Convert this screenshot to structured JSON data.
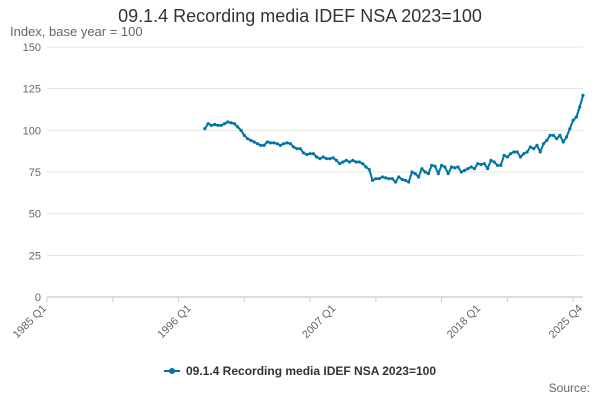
{
  "chart_data": {
    "type": "line",
    "title": "09.1.4 Recording media IDEF NSA 2023=100",
    "ylabel": "Index, base year = 100",
    "xlabel": "",
    "ylim": [
      0,
      150
    ],
    "yticks": [
      0,
      25,
      50,
      75,
      100,
      125,
      150
    ],
    "xlim": [
      1985.0,
      2025.75
    ],
    "x_tick_labels": [
      "1985 Q1",
      "1996 Q1",
      "2007 Q1",
      "2018 Q1",
      "2025 Q4"
    ],
    "x_tick_values": [
      1985.0,
      1996.0,
      2007.0,
      2018.0,
      2025.75
    ],
    "grid": true,
    "legend": "bottom-center",
    "series": [
      {
        "name": "09.1.4 Recording media IDEF NSA 2023=100",
        "color": "#0075A3",
        "points": [
          [
            1997.0,
            101
          ],
          [
            1997.25,
            104
          ],
          [
            1997.5,
            103
          ],
          [
            1997.75,
            103.5
          ],
          [
            1998.0,
            103
          ],
          [
            1998.25,
            103
          ],
          [
            1998.5,
            104
          ],
          [
            1998.75,
            105
          ],
          [
            1999.0,
            104.5
          ],
          [
            1999.25,
            104
          ],
          [
            1999.5,
            102
          ],
          [
            1999.75,
            100
          ],
          [
            2000.0,
            97
          ],
          [
            2000.25,
            95
          ],
          [
            2000.5,
            94
          ],
          [
            2000.75,
            93
          ],
          [
            2001.0,
            92
          ],
          [
            2001.25,
            91
          ],
          [
            2001.5,
            91
          ],
          [
            2001.75,
            93
          ],
          [
            2002.0,
            92.5
          ],
          [
            2002.25,
            92.5
          ],
          [
            2002.5,
            92
          ],
          [
            2002.75,
            91
          ],
          [
            2003.0,
            92
          ],
          [
            2003.25,
            92.5
          ],
          [
            2003.5,
            92
          ],
          [
            2003.75,
            90
          ],
          [
            2004.0,
            89
          ],
          [
            2004.25,
            89
          ],
          [
            2004.5,
            86.5
          ],
          [
            2004.75,
            85.5
          ],
          [
            2005.0,
            86
          ],
          [
            2005.25,
            86
          ],
          [
            2005.5,
            84
          ],
          [
            2005.75,
            83
          ],
          [
            2006.0,
            84
          ],
          [
            2006.25,
            83
          ],
          [
            2006.5,
            83
          ],
          [
            2006.75,
            83.5
          ],
          [
            2007.0,
            82
          ],
          [
            2007.25,
            80
          ],
          [
            2007.5,
            81
          ],
          [
            2007.75,
            82
          ],
          [
            2008.0,
            81
          ],
          [
            2008.25,
            82
          ],
          [
            2008.5,
            81
          ],
          [
            2008.75,
            81
          ],
          [
            2009.0,
            80
          ],
          [
            2009.25,
            78
          ],
          [
            2009.5,
            76.5
          ],
          [
            2009.75,
            70
          ],
          [
            2010.0,
            71
          ],
          [
            2010.25,
            71
          ],
          [
            2010.5,
            72
          ],
          [
            2010.75,
            71.5
          ],
          [
            2011.0,
            71
          ],
          [
            2011.25,
            71
          ],
          [
            2011.5,
            69
          ],
          [
            2011.75,
            72
          ],
          [
            2012.0,
            70.5
          ],
          [
            2012.25,
            70
          ],
          [
            2012.5,
            69
          ],
          [
            2012.75,
            75
          ],
          [
            2013.0,
            74
          ],
          [
            2013.25,
            72
          ],
          [
            2013.5,
            77
          ],
          [
            2013.75,
            75
          ],
          [
            2014.0,
            74
          ],
          [
            2014.25,
            79
          ],
          [
            2014.5,
            78.5
          ],
          [
            2014.75,
            74
          ],
          [
            2015.0,
            79
          ],
          [
            2015.25,
            78
          ],
          [
            2015.5,
            74
          ],
          [
            2015.75,
            78
          ],
          [
            2016.0,
            77.5
          ],
          [
            2016.25,
            78
          ],
          [
            2016.5,
            75
          ],
          [
            2016.75,
            76
          ],
          [
            2017.0,
            77
          ],
          [
            2017.25,
            78
          ],
          [
            2017.5,
            77
          ],
          [
            2017.75,
            80
          ],
          [
            2018.0,
            79.5
          ],
          [
            2018.25,
            80
          ],
          [
            2018.5,
            77
          ],
          [
            2018.75,
            82
          ],
          [
            2019.0,
            81
          ],
          [
            2019.25,
            79
          ],
          [
            2019.5,
            79
          ],
          [
            2019.75,
            85
          ],
          [
            2020.0,
            84
          ],
          [
            2020.25,
            86
          ],
          [
            2020.5,
            87
          ],
          [
            2020.75,
            87
          ],
          [
            2021.0,
            84
          ],
          [
            2021.25,
            86
          ],
          [
            2021.5,
            87
          ],
          [
            2021.75,
            90
          ],
          [
            2022.0,
            89
          ],
          [
            2022.25,
            91
          ],
          [
            2022.5,
            87
          ],
          [
            2022.75,
            92
          ],
          [
            2023.0,
            94
          ],
          [
            2023.25,
            97
          ],
          [
            2023.5,
            97
          ],
          [
            2023.75,
            95
          ],
          [
            2024.0,
            97
          ],
          [
            2024.25,
            93
          ],
          [
            2024.5,
            96
          ],
          [
            2024.75,
            101
          ],
          [
            2025.0,
            106
          ],
          [
            2025.25,
            108
          ],
          [
            2025.5,
            114
          ],
          [
            2025.75,
            121
          ]
        ]
      }
    ]
  },
  "legend_label": "09.1.4 Recording media IDEF NSA 2023=100",
  "source_label": "Source:"
}
